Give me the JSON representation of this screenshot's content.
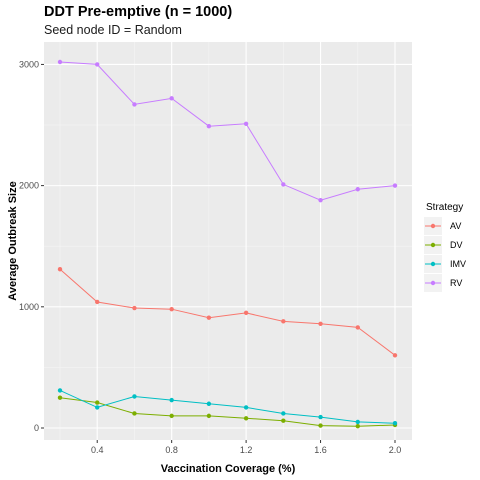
{
  "chart_data": {
    "type": "line",
    "title": "DDT Pre-emptive (n = 1000)",
    "subtitle": "Seed node ID = Random",
    "xlabel": "Vaccination Coverage (%)",
    "ylabel": "Average Outbreak Size",
    "x": [
      0.2,
      0.4,
      0.6,
      0.8,
      1.0,
      1.2,
      1.4,
      1.6,
      1.8,
      2.0
    ],
    "x_ticks": [
      "0.4",
      "0.8",
      "1.2",
      "1.6",
      "2.0"
    ],
    "y_ticks": [
      "0",
      "1000",
      "2000",
      "3000"
    ],
    "xlim": [
      0.2,
      2.0
    ],
    "ylim": [
      0,
      3020
    ],
    "grid": true,
    "legend_title": "Strategy",
    "legend_position": "right",
    "series": [
      {
        "name": "AV",
        "color": "#F8766D",
        "values": [
          1310,
          1040,
          990,
          980,
          910,
          950,
          880,
          860,
          830,
          600
        ]
      },
      {
        "name": "DV",
        "color": "#7CAE00",
        "values": [
          250,
          210,
          120,
          100,
          100,
          80,
          60,
          20,
          15,
          25
        ]
      },
      {
        "name": "IMV",
        "color": "#00BFC4",
        "values": [
          310,
          170,
          260,
          230,
          200,
          170,
          120,
          90,
          50,
          40
        ]
      },
      {
        "name": "RV",
        "color": "#C77CFF",
        "values": [
          3020,
          3000,
          2670,
          2720,
          2490,
          2510,
          2010,
          1880,
          1970,
          2000
        ]
      }
    ]
  }
}
